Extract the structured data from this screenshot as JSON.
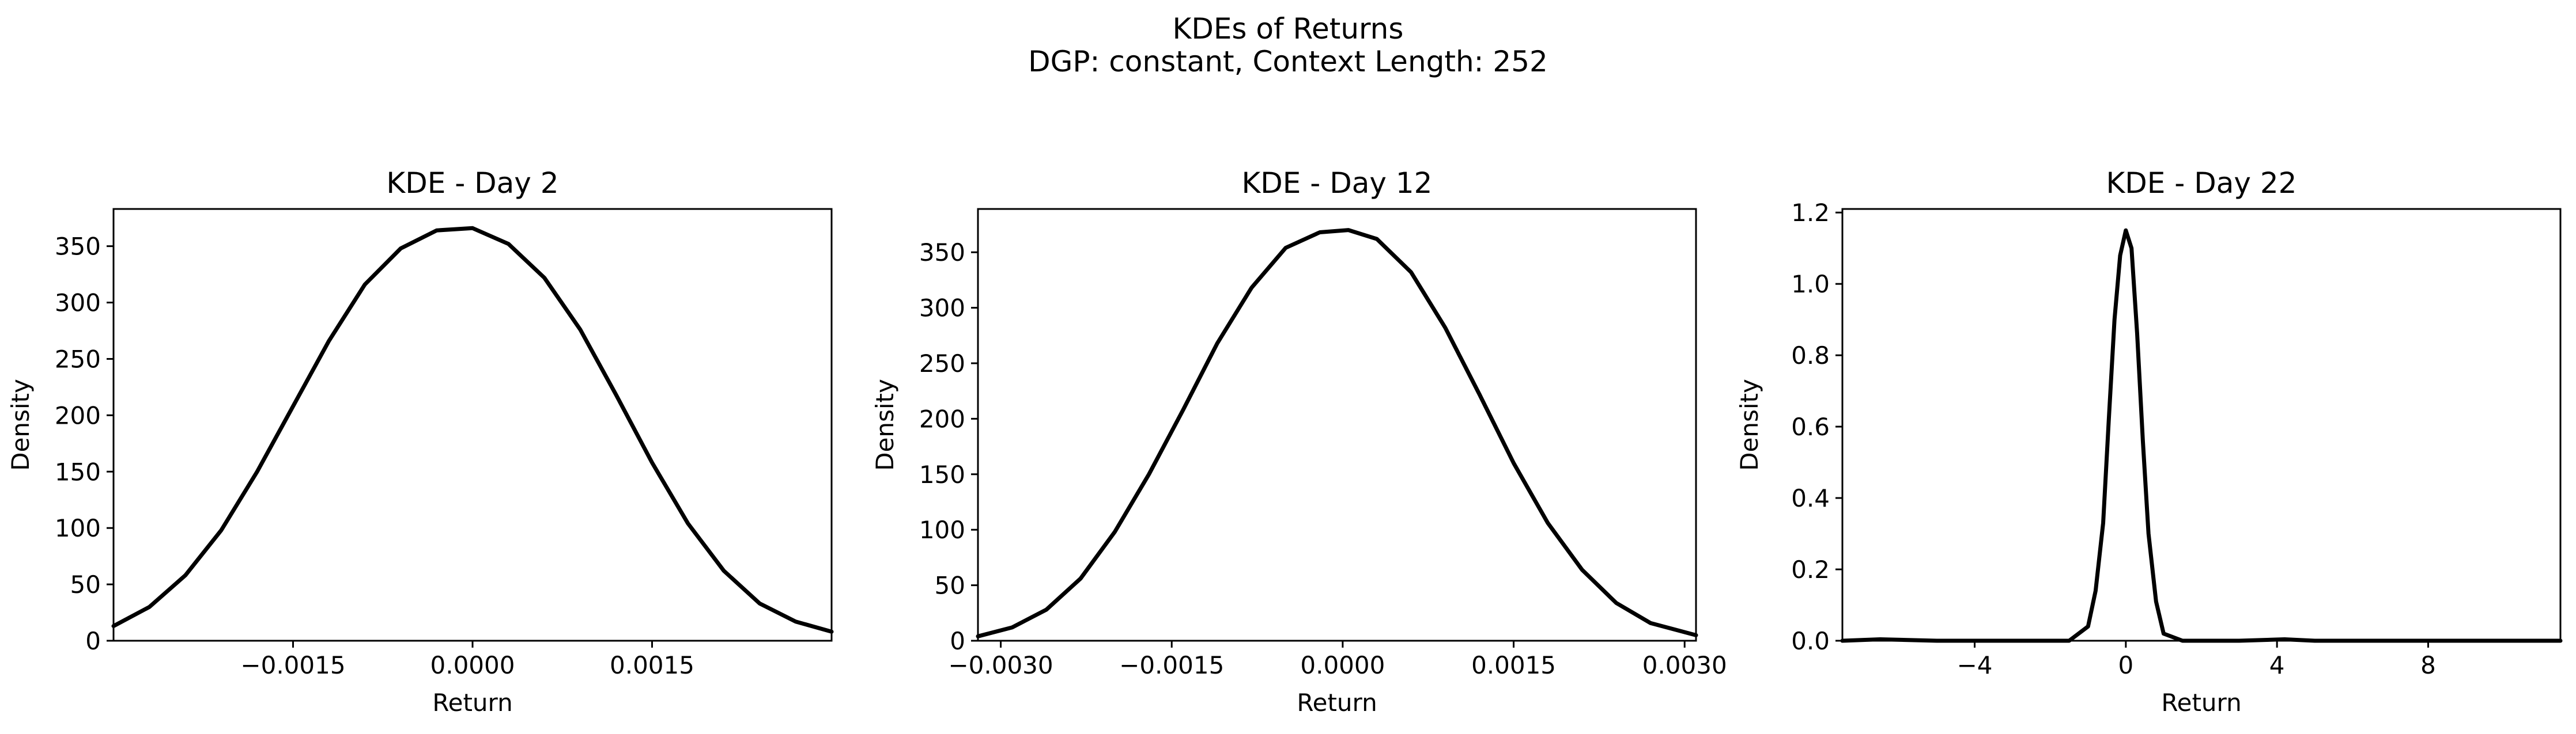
{
  "suptitle": [
    "KDEs of Returns",
    "DGP: constant, Context Length: 252"
  ],
  "chart_data": [
    {
      "type": "line",
      "title": "KDE - Day 2",
      "xlabel": "Return",
      "ylabel": "Density",
      "xlim": [
        -0.003,
        0.003
      ],
      "ylim": [
        0,
        383
      ],
      "xticks": [
        -0.0015,
        0.0,
        0.0015
      ],
      "xtick_labels": [
        "−0.0015",
        "0.0000",
        "0.0015"
      ],
      "yticks": [
        0,
        50,
        100,
        150,
        200,
        250,
        300,
        350
      ],
      "ytick_labels": [
        "0",
        "50",
        "100",
        "150",
        "200",
        "250",
        "300",
        "350"
      ],
      "series": [
        {
          "color": "#000000",
          "x": [
            -0.003,
            -0.0027,
            -0.0024,
            -0.0021,
            -0.0018,
            -0.0015,
            -0.0012,
            -0.0009,
            -0.0006,
            -0.0003,
            0.0,
            0.0003,
            0.0006,
            0.0009,
            0.0012,
            0.0015,
            0.0018,
            0.0021,
            0.0024,
            0.0027,
            0.003
          ],
          "y": [
            13,
            30,
            58,
            98,
            150,
            208,
            266,
            316,
            348,
            364,
            366,
            352,
            322,
            276,
            218,
            158,
            104,
            62,
            33,
            17,
            8
          ]
        }
      ]
    },
    {
      "type": "line",
      "title": "KDE - Day 12",
      "xlabel": "Return",
      "ylabel": "Density",
      "xlim": [
        -0.0032,
        0.0031
      ],
      "ylim": [
        0,
        389
      ],
      "xticks": [
        -0.003,
        -0.0015,
        0.0,
        0.0015,
        0.003
      ],
      "xtick_labels": [
        "−0.0030",
        "−0.0015",
        "0.0000",
        "0.0015",
        "0.0030"
      ],
      "yticks": [
        0,
        50,
        100,
        150,
        200,
        250,
        300,
        350
      ],
      "ytick_labels": [
        "0",
        "50",
        "100",
        "150",
        "200",
        "250",
        "300",
        "350"
      ],
      "series": [
        {
          "color": "#000000",
          "x": [
            -0.0032,
            -0.0029,
            -0.0026,
            -0.0023,
            -0.002,
            -0.0017,
            -0.0014,
            -0.0011,
            -0.0008,
            -0.0005,
            -0.0002,
            5e-05,
            0.0003,
            0.0006,
            0.0009,
            0.0012,
            0.0015,
            0.0018,
            0.0021,
            0.0024,
            0.0027,
            0.0031
          ],
          "y": [
            4,
            12,
            28,
            56,
            98,
            150,
            208,
            268,
            318,
            354,
            368,
            370,
            362,
            332,
            282,
            222,
            160,
            106,
            64,
            34,
            16,
            5
          ]
        }
      ]
    },
    {
      "type": "line",
      "title": "KDE - Day 22",
      "xlabel": "Return",
      "ylabel": "Density",
      "xlim": [
        -7.5,
        11.5
      ],
      "ylim": [
        0,
        1.21
      ],
      "xticks": [
        -4,
        0,
        4,
        8
      ],
      "xtick_labels": [
        "−4",
        "0",
        "4",
        "8"
      ],
      "yticks": [
        0.0,
        0.2,
        0.4,
        0.6,
        0.8,
        1.0,
        1.2
      ],
      "ytick_labels": [
        "0.0",
        "0.2",
        "0.4",
        "0.6",
        "0.8",
        "1.0",
        "1.2"
      ],
      "series": [
        {
          "color": "#000000",
          "x": [
            -7.5,
            -6.5,
            -5.0,
            -3.0,
            -1.5,
            -1.0,
            -0.8,
            -0.6,
            -0.45,
            -0.3,
            -0.15,
            0.0,
            0.15,
            0.3,
            0.45,
            0.6,
            0.8,
            1.0,
            1.5,
            3.0,
            4.2,
            5.0,
            8.0,
            11.5
          ],
          "y": [
            0.0,
            0.004,
            0.0,
            0.0,
            0.0,
            0.04,
            0.14,
            0.33,
            0.62,
            0.9,
            1.08,
            1.15,
            1.1,
            0.86,
            0.56,
            0.3,
            0.11,
            0.02,
            0.0,
            0.0,
            0.004,
            0.0,
            0.0,
            0.0
          ]
        }
      ]
    }
  ]
}
